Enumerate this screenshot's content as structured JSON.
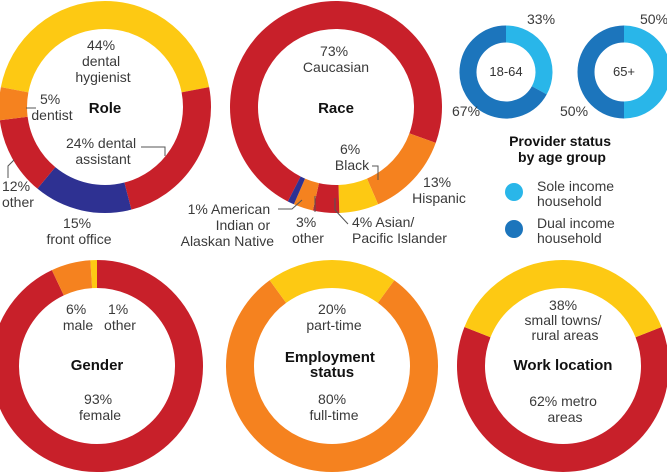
{
  "colors": {
    "red": "#c8202a",
    "yellow": "#fdc913",
    "orange": "#f5821f",
    "navy": "#2e3192",
    "light_blue": "#29b6e9",
    "dark_blue": "#1c75bc"
  },
  "chart_data": [
    {
      "type": "pie",
      "title": "Role",
      "slices": [
        {
          "name": "dental hygienist",
          "value": 44,
          "color": "#fdc913",
          "label": [
            "44%",
            "dental",
            "hygienist"
          ]
        },
        {
          "name": "dental assistant",
          "value": 24,
          "color": "#c8202a",
          "label": [
            "24% dental",
            "assistant"
          ]
        },
        {
          "name": "front office",
          "value": 15,
          "color": "#2e3192",
          "label": [
            "15%",
            "front office"
          ]
        },
        {
          "name": "other",
          "value": 12,
          "color": "#c8202a",
          "label": [
            "12%",
            "other"
          ]
        },
        {
          "name": "dentist",
          "value": 5,
          "color": "#f5821f",
          "label": [
            "5%",
            "dentist"
          ]
        }
      ]
    },
    {
      "type": "pie",
      "title": "Race",
      "slices": [
        {
          "name": "Caucasian",
          "value": 73,
          "color": "#c8202a",
          "label": [
            "73%",
            "Caucasian"
          ]
        },
        {
          "name": "Hispanic",
          "value": 13,
          "color": "#f5821f",
          "label": [
            "13%",
            "Hispanic"
          ]
        },
        {
          "name": "Black",
          "value": 6,
          "color": "#fdc913",
          "label": [
            "6%",
            "Black"
          ]
        },
        {
          "name": "Asian/Pacific Islander",
          "value": 4,
          "color": "#c8202a",
          "label": [
            "4% Asian/",
            "Pacific Islander"
          ]
        },
        {
          "name": "other",
          "value": 3,
          "color": "#f5821f",
          "label": [
            "3%",
            "other"
          ]
        },
        {
          "name": "American Indian or Alaskan Native",
          "value": 1,
          "color": "#2e3192",
          "label": [
            "1% American",
            "Indian or",
            "Alaskan Native"
          ]
        }
      ]
    },
    {
      "type": "pie",
      "title": "Gender",
      "slices": [
        {
          "name": "female",
          "value": 93,
          "color": "#c8202a",
          "label": [
            "93%",
            "female"
          ]
        },
        {
          "name": "male",
          "value": 6,
          "color": "#f5821f",
          "label": [
            "6%",
            "male"
          ]
        },
        {
          "name": "other",
          "value": 1,
          "color": "#fdc913",
          "label": [
            "1%",
            "other"
          ]
        }
      ]
    },
    {
      "type": "pie",
      "title": "Employment status",
      "title_lines": [
        "Employment",
        "status"
      ],
      "slices": [
        {
          "name": "full-time",
          "value": 80,
          "color": "#f5821f",
          "label": [
            "80%",
            "full-time"
          ]
        },
        {
          "name": "part-time",
          "value": 20,
          "color": "#fdc913",
          "label": [
            "20%",
            "part-time"
          ]
        }
      ]
    },
    {
      "type": "pie",
      "title": "Work location",
      "slices": [
        {
          "name": "metro areas",
          "value": 62,
          "color": "#c8202a",
          "label": [
            "62% metro",
            "areas"
          ]
        },
        {
          "name": "small towns/rural areas",
          "value": 38,
          "color": "#fdc913",
          "label": [
            "38%",
            "small towns/",
            "rural areas"
          ]
        }
      ]
    },
    {
      "type": "pie",
      "title": "Provider status by age group",
      "title_lines": [
        "Provider status",
        "by age group"
      ],
      "groups": [
        {
          "name": "18-64",
          "sole": 33,
          "dual": 67,
          "sole_label": "33%",
          "dual_label": "67%"
        },
        {
          "name": "65+",
          "sole": 50,
          "dual": 50,
          "sole_label": "50%",
          "dual_label": "50%"
        }
      ],
      "legend": [
        {
          "name": "Sole income household",
          "lines": [
            "Sole income",
            "household"
          ],
          "color": "#29b6e9"
        },
        {
          "name": "Dual income household",
          "lines": [
            "Dual income",
            "household"
          ],
          "color": "#1c75bc"
        }
      ]
    }
  ]
}
